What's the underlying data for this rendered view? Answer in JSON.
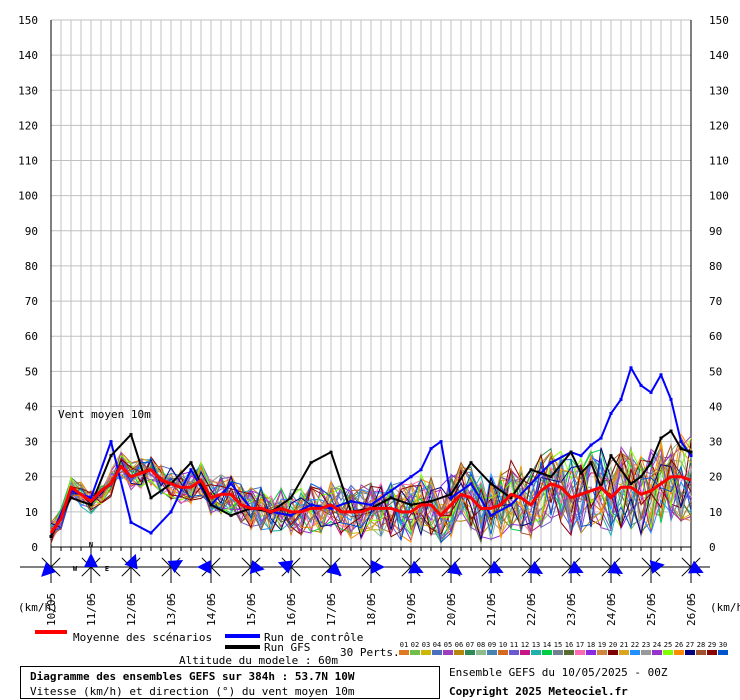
{
  "chart_data": {
    "type": "line",
    "left_label": "Vent moyen 10m",
    "yticks": [
      0,
      10,
      20,
      30,
      40,
      50,
      60,
      70,
      80,
      90,
      100,
      110,
      120,
      130,
      140,
      150
    ],
    "ylim": [
      0,
      150
    ],
    "unit_label": "(km/h)",
    "xtick_labels": [
      "10/05",
      "11/05",
      "12/05",
      "13/05",
      "14/05",
      "15/05",
      "16/05",
      "17/05",
      "18/05",
      "19/05",
      "20/05",
      "21/05",
      "22/05",
      "23/05",
      "24/05",
      "25/05",
      "26/05"
    ],
    "x_range_hours": [
      0,
      384
    ],
    "mean": {
      "name": "Moyenne des scénarios",
      "color": "#ff0000",
      "hours": [
        0,
        6,
        12,
        18,
        24,
        30,
        36,
        42,
        48,
        54,
        60,
        66,
        72,
        78,
        84,
        90,
        96,
        102,
        108,
        114,
        120,
        126,
        132,
        138,
        144,
        150,
        156,
        162,
        168,
        174,
        180,
        186,
        192,
        198,
        204,
        210,
        216,
        222,
        228,
        234,
        240,
        246,
        252,
        258,
        264,
        270,
        276,
        282,
        288,
        294,
        300,
        306,
        312,
        318,
        324,
        330,
        336,
        342,
        348,
        354,
        360,
        366,
        372,
        378,
        384
      ],
      "values": [
        4,
        8,
        17,
        15,
        13,
        16,
        18,
        23,
        20,
        21,
        22,
        19,
        18,
        17,
        17,
        19,
        14,
        15,
        15,
        12,
        11,
        11,
        10,
        11,
        10,
        10,
        11,
        11,
        12,
        10,
        10,
        10,
        11,
        11,
        11,
        10,
        10,
        12,
        12,
        9,
        12,
        15,
        14,
        11,
        11,
        12,
        15,
        14,
        12,
        16,
        18,
        17,
        14,
        15,
        16,
        17,
        14,
        17,
        17,
        15,
        16,
        18,
        20,
        20,
        19
      ]
    },
    "control": {
      "name": "Run de contrôle",
      "color": "#0000ff",
      "hours": [
        0,
        12,
        24,
        36,
        48,
        60,
        72,
        84,
        96,
        108,
        120,
        132,
        144,
        156,
        168,
        180,
        192,
        204,
        216,
        222,
        228,
        234,
        240,
        252,
        264,
        276,
        288,
        300,
        312,
        318,
        324,
        330,
        336,
        342,
        348,
        354,
        360,
        366,
        372,
        378,
        384
      ],
      "values": [
        3,
        16,
        14,
        30,
        7,
        4,
        10,
        22,
        12,
        18,
        11,
        10,
        9,
        12,
        11,
        13,
        12,
        16,
        20,
        22,
        28,
        30,
        14,
        18,
        9,
        12,
        18,
        24,
        27,
        26,
        29,
        31,
        38,
        42,
        51,
        46,
        44,
        49,
        42,
        30,
        26
      ]
    },
    "gfs": {
      "name": "Run GFS",
      "color": "#000000",
      "hours": [
        0,
        12,
        24,
        36,
        48,
        60,
        72,
        84,
        96,
        108,
        120,
        132,
        144,
        156,
        168,
        180,
        192,
        204,
        216,
        228,
        240,
        252,
        264,
        276,
        288,
        300,
        312,
        318,
        324,
        330,
        336,
        342,
        348,
        354,
        360,
        366,
        372,
        378,
        384
      ],
      "values": [
        3,
        14,
        12,
        26,
        32,
        14,
        18,
        24,
        12,
        9,
        11,
        10,
        14,
        24,
        27,
        10,
        11,
        14,
        12,
        13,
        15,
        24,
        18,
        14,
        22,
        20,
        27,
        21,
        24,
        17,
        26,
        22,
        18,
        20,
        24,
        31,
        33,
        28,
        27
      ]
    },
    "perturbations": {
      "label": "30 Perts.",
      "numbers": [
        "01",
        "02",
        "03",
        "04",
        "05",
        "06",
        "07",
        "08",
        "09",
        "10",
        "11",
        "12",
        "13",
        "14",
        "15",
        "16",
        "17",
        "18",
        "19",
        "20",
        "21",
        "22",
        "23",
        "24",
        "25",
        "26",
        "27",
        "28",
        "29",
        "30"
      ],
      "colors": [
        "#e07a20",
        "#6fbf4a",
        "#ccb800",
        "#4a6fbf",
        "#9b3fbf",
        "#b8860b",
        "#2e8b57",
        "#8fbc8f",
        "#4682b4",
        "#d2691e",
        "#6a5acd",
        "#c71585",
        "#20b2aa",
        "#00cc44",
        "#708090",
        "#556b2f",
        "#ff69b4",
        "#8a2be2",
        "#cd853f",
        "#800000",
        "#daa520",
        "#1e90ff",
        "#999999",
        "#9932cc",
        "#7fff00",
        "#ff8c00",
        "#000080",
        "#a0522d",
        "#8b0000",
        "#0055cc"
      ]
    },
    "wind_directions_deg": [
      225,
      0,
      20,
      60,
      270,
      100,
      290,
      130,
      90,
      115,
      125,
      115,
      120,
      115,
      120,
      80,
      115
    ]
  },
  "legend": {
    "mean": "Moyenne des scénarios",
    "control": "Run de contrôle",
    "gfs": "Run GFS",
    "altitude": "Altitude du modele : 60m"
  },
  "footer": {
    "title": "Diagramme des ensembles GEFS sur 384h : 53.7N 10W",
    "subtitle": "Vitesse (km/h) et direction (°) du vent moyen 10m",
    "ensemble": "Ensemble GEFS du 10/05/2025 - 00Z",
    "copyright": "Copyright 2025 Meteociel.fr"
  },
  "compass": {
    "n": "N",
    "w": "W",
    "e": "E"
  },
  "colors": {
    "grid": "#c0c0c0",
    "arrow": "#0000ff"
  }
}
